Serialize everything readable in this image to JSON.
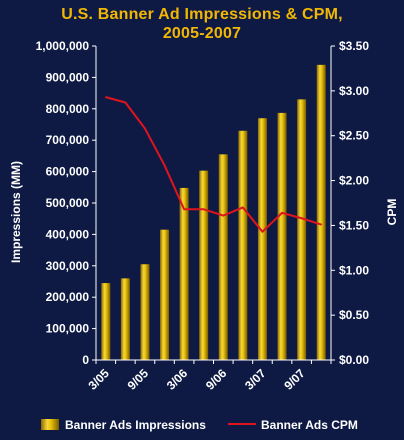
{
  "chart_data": {
    "type": "bar",
    "title": "U.S. Banner Ad Impressions & CPM,",
    "subtitle": "2005-2007",
    "ylabel": "Impressions (MM)",
    "y2label": "CPM",
    "ylim": [
      0,
      1000000
    ],
    "y2lim": [
      0,
      3.5
    ],
    "y_ticks": [
      "0",
      "100,000",
      "200,000",
      "300,000",
      "400,000",
      "500,000",
      "600,000",
      "700,000",
      "800,000",
      "900,000",
      "1,000,000"
    ],
    "y2_ticks": [
      "$0.00",
      "$0.50",
      "$1.00",
      "$1.50",
      "$2.00",
      "$2.50",
      "$3.00",
      "$3.50"
    ],
    "x_tick_labels": [
      "3/05",
      "9/05",
      "3/06",
      "9/06",
      "3/07",
      "9/07"
    ],
    "x_tick_positions": [
      0,
      2,
      4,
      6,
      8,
      10
    ],
    "point_count": 12,
    "series": [
      {
        "name": "Banner Ads Impressions",
        "type": "bar",
        "axis": "left",
        "color": "#e8c20c",
        "values": [
          245000,
          260000,
          305000,
          415000,
          548000,
          603000,
          655000,
          730000,
          770000,
          787000,
          830000,
          940000
        ]
      },
      {
        "name": "Banner Ads CPM",
        "type": "line",
        "axis": "right",
        "color": "#e0141e",
        "values": [
          2.93,
          2.87,
          2.58,
          2.17,
          1.68,
          1.68,
          1.61,
          1.7,
          1.43,
          1.64,
          1.58,
          1.51
        ]
      }
    ],
    "legend": "bottom"
  }
}
